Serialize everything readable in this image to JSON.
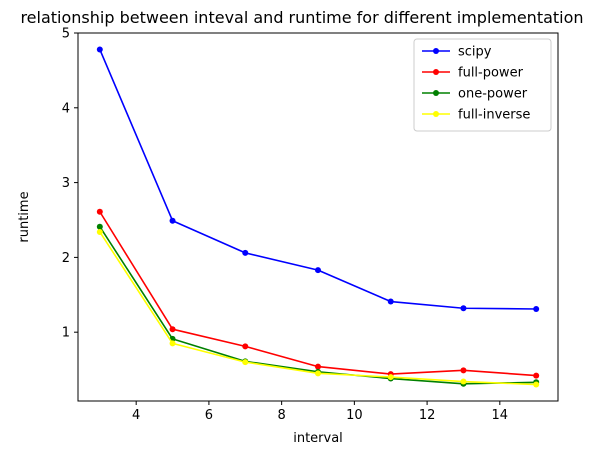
{
  "chart_data": {
    "type": "line",
    "title": "relationship between inteval and runtime for different implementation",
    "xlabel": "interval",
    "ylabel": "runtime",
    "x": [
      3,
      5,
      7,
      9,
      11,
      13,
      15
    ],
    "xlim": [
      2.4,
      15.6
    ],
    "ylim": [
      0.08,
      5.0
    ],
    "xticks": [
      4,
      6,
      8,
      10,
      12,
      14
    ],
    "yticks": [
      1,
      2,
      3,
      4,
      5
    ],
    "grid": false,
    "legend_position": "top-right",
    "series": [
      {
        "name": "scipy",
        "color": "#0000ff",
        "values": [
          4.78,
          2.49,
          2.06,
          1.83,
          1.41,
          1.32,
          1.31
        ]
      },
      {
        "name": "full-power",
        "color": "#ff0000",
        "values": [
          2.61,
          1.04,
          0.81,
          0.54,
          0.44,
          0.49,
          0.42
        ]
      },
      {
        "name": "one-power",
        "color": "#008000",
        "values": [
          2.41,
          0.91,
          0.61,
          0.47,
          0.38,
          0.31,
          0.33
        ]
      },
      {
        "name": "full-inverse",
        "color": "#ffff00",
        "values": [
          2.34,
          0.85,
          0.6,
          0.45,
          0.4,
          0.34,
          0.3
        ]
      }
    ]
  }
}
